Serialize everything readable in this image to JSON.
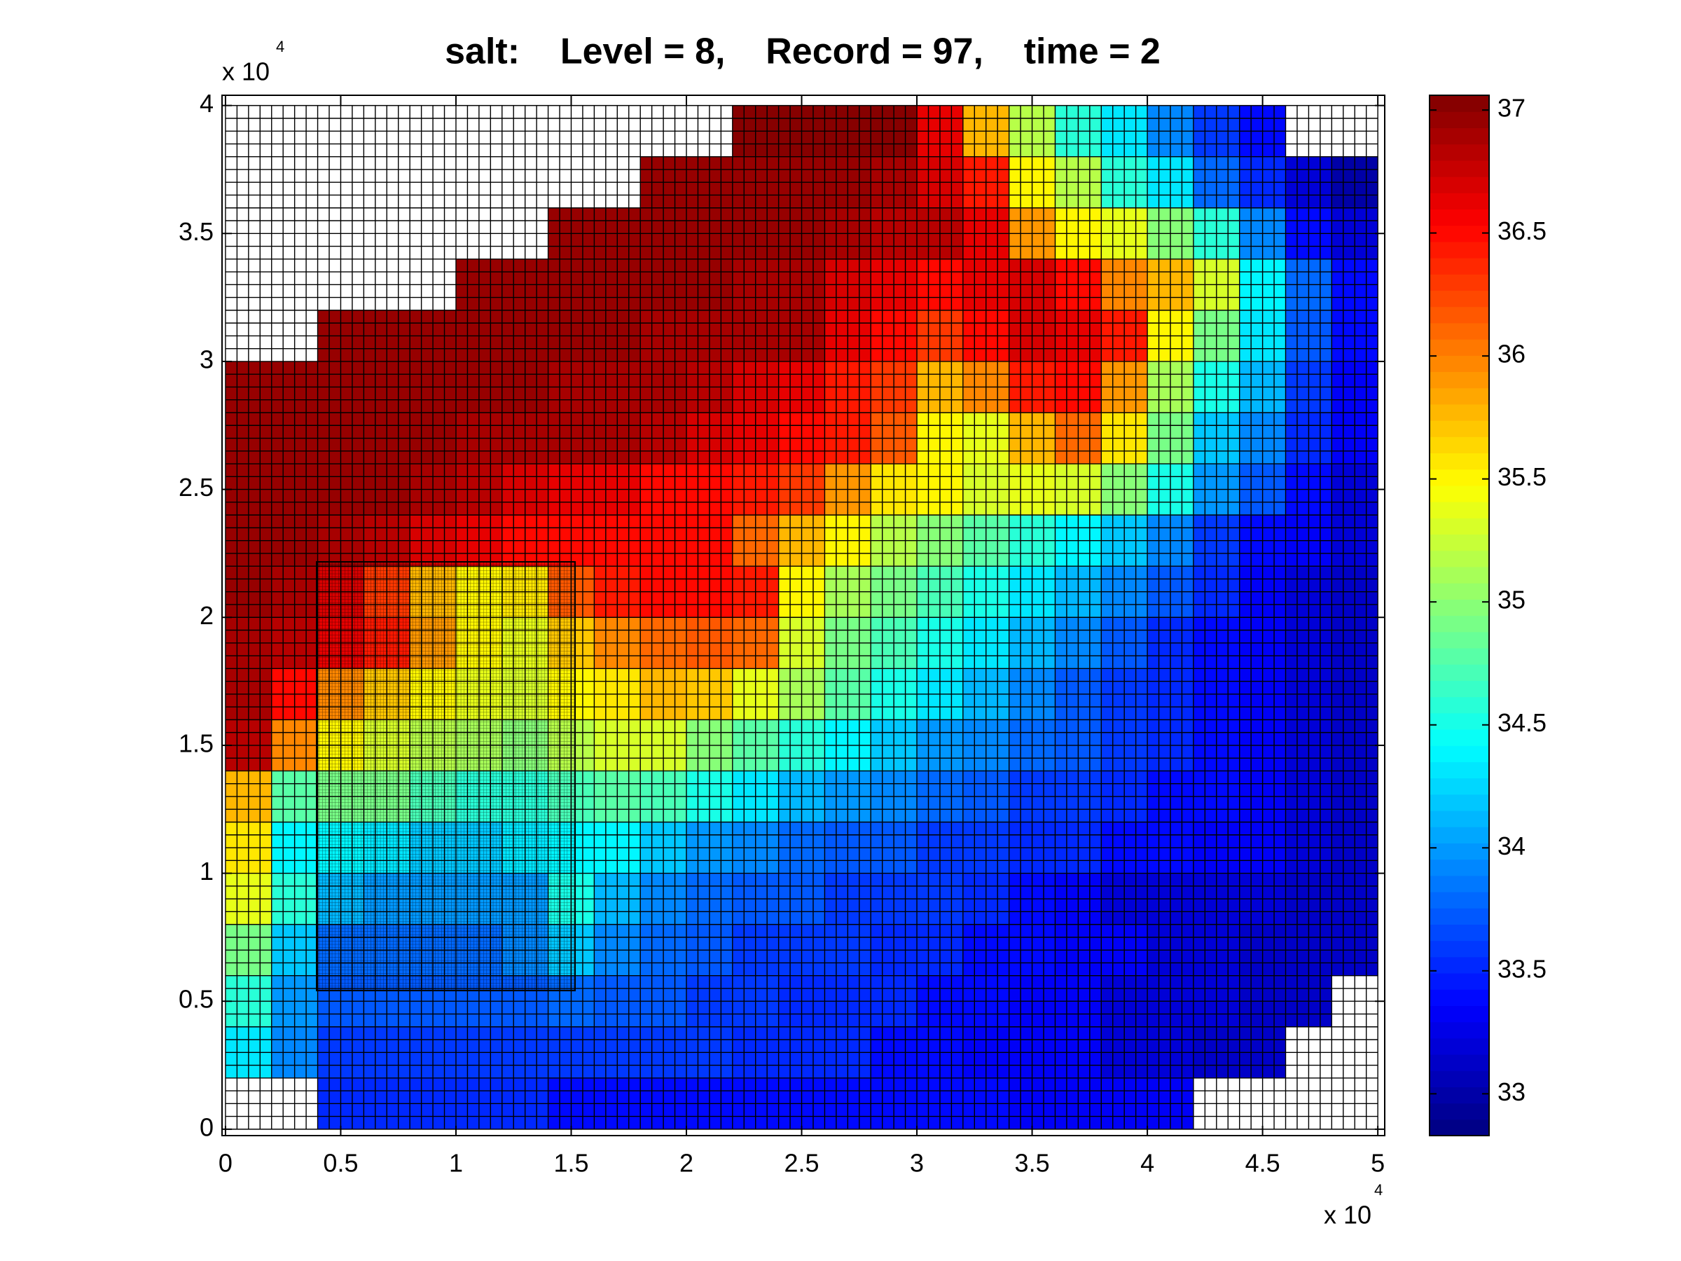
{
  "chart_data": {
    "type": "heatmap",
    "title": "salt:    Level = 8,    Record = 97,    time = 2",
    "x": [
      1000,
      3000,
      5000,
      7000,
      9000,
      11000,
      13000,
      15000,
      17000,
      19000,
      21000,
      23000,
      25000,
      27000,
      29000,
      31000,
      33000,
      35000,
      37000,
      39000,
      41000,
      43000,
      45000,
      47000,
      49000
    ],
    "y": [
      1000,
      3000,
      5000,
      7000,
      9000,
      11000,
      13000,
      15000,
      17000,
      19000,
      21000,
      23000,
      25000,
      27000,
      29000,
      31000,
      33000,
      35000,
      37000,
      39000
    ],
    "z": [
      [
        null,
        null,
        33.5,
        33.5,
        33.5,
        33.5,
        33.5,
        33.4,
        33.4,
        33.4,
        33.4,
        33.4,
        33.4,
        33.4,
        33.4,
        33.4,
        33.4,
        33.3,
        33.3,
        33.3,
        33.3,
        null,
        null,
        null,
        null
      ],
      [
        34.3,
        33.9,
        33.6,
        33.6,
        33.6,
        33.6,
        33.6,
        33.6,
        33.6,
        33.6,
        33.6,
        33.5,
        33.5,
        33.5,
        33.4,
        33.4,
        33.3,
        33.3,
        33.3,
        33.2,
        33.2,
        33.1,
        33.1,
        null,
        null
      ],
      [
        34.6,
        34.0,
        33.7,
        33.7,
        33.7,
        33.7,
        33.7,
        33.8,
        33.7,
        33.7,
        33.6,
        33.6,
        33.5,
        33.5,
        33.5,
        33.4,
        33.4,
        33.3,
        33.3,
        33.2,
        33.2,
        33.2,
        33.1,
        33.1,
        null
      ],
      [
        34.9,
        34.2,
        33.8,
        33.8,
        33.8,
        33.8,
        33.9,
        34.2,
        33.9,
        33.8,
        33.7,
        33.6,
        33.6,
        33.6,
        33.5,
        33.5,
        33.4,
        33.4,
        33.3,
        33.3,
        33.2,
        33.2,
        33.1,
        33.1,
        33.1
      ],
      [
        35.4,
        34.6,
        34.1,
        34.0,
        34.0,
        34.0,
        34.0,
        34.5,
        34.1,
        33.9,
        33.8,
        33.7,
        33.7,
        33.6,
        33.6,
        33.6,
        33.5,
        33.4,
        33.3,
        33.2,
        33.2,
        33.2,
        33.2,
        33.1,
        33.1
      ],
      [
        35.6,
        34.4,
        34.4,
        34.3,
        34.2,
        34.2,
        34.3,
        34.4,
        34.4,
        34.2,
        34.0,
        33.9,
        33.8,
        33.7,
        33.7,
        33.6,
        33.6,
        33.5,
        33.5,
        33.4,
        33.4,
        33.3,
        33.3,
        33.2,
        33.1
      ],
      [
        35.8,
        34.8,
        34.9,
        34.9,
        34.7,
        34.6,
        34.6,
        34.7,
        34.8,
        34.7,
        34.5,
        34.3,
        34.1,
        34.0,
        33.9,
        33.8,
        33.7,
        33.6,
        33.6,
        33.5,
        33.4,
        33.4,
        33.3,
        33.2,
        33.1
      ],
      [
        36.8,
        36.0,
        35.5,
        35.3,
        35.2,
        35.1,
        35.0,
        35.2,
        35.3,
        35.3,
        35.0,
        34.8,
        34.6,
        34.4,
        34.2,
        34.0,
        33.9,
        33.8,
        33.7,
        33.6,
        33.5,
        33.4,
        33.3,
        33.2,
        33.1
      ],
      [
        36.9,
        36.5,
        36.0,
        35.7,
        35.5,
        35.4,
        35.3,
        35.5,
        35.6,
        35.8,
        35.7,
        35.4,
        35.1,
        34.8,
        34.5,
        34.3,
        34.1,
        33.9,
        33.7,
        33.6,
        33.5,
        33.4,
        33.3,
        33.2,
        33.1
      ],
      [
        36.9,
        36.8,
        36.6,
        36.4,
        35.9,
        35.5,
        35.4,
        35.7,
        36.0,
        36.1,
        36.2,
        36.1,
        35.3,
        34.9,
        34.7,
        34.5,
        34.3,
        34.1,
        33.9,
        33.7,
        33.5,
        33.4,
        33.3,
        33.2,
        33.1
      ],
      [
        36.95,
        36.9,
        36.7,
        36.3,
        35.8,
        35.5,
        35.6,
        36.2,
        36.4,
        36.5,
        36.5,
        36.4,
        35.5,
        35.1,
        34.9,
        34.7,
        34.5,
        34.3,
        34.1,
        33.9,
        33.7,
        33.5,
        33.3,
        33.2,
        33.1
      ],
      [
        36.95,
        36.95,
        36.9,
        36.8,
        36.7,
        36.6,
        36.5,
        36.5,
        36.5,
        36.5,
        36.5,
        36.1,
        35.8,
        35.5,
        35.2,
        35.0,
        34.8,
        34.6,
        34.4,
        34.2,
        33.9,
        33.6,
        33.4,
        33.3,
        33.2
      ],
      [
        36.95,
        36.95,
        36.95,
        36.95,
        36.9,
        36.8,
        36.7,
        36.6,
        36.6,
        36.5,
        36.5,
        36.4,
        36.3,
        35.9,
        35.6,
        35.5,
        35.3,
        35.4,
        35.3,
        35.0,
        34.5,
        34.0,
        33.7,
        33.4,
        33.2
      ],
      [
        36.95,
        36.95,
        36.95,
        36.95,
        36.95,
        36.9,
        36.9,
        36.9,
        36.9,
        36.8,
        36.7,
        36.6,
        36.5,
        36.4,
        36.2,
        35.5,
        35.4,
        35.8,
        36.1,
        35.6,
        34.9,
        34.2,
        33.9,
        33.5,
        33.3
      ],
      [
        36.95,
        36.95,
        36.95,
        36.95,
        36.95,
        36.95,
        36.95,
        36.9,
        36.9,
        36.9,
        36.8,
        36.7,
        36.6,
        36.4,
        36.3,
        35.8,
        36.0,
        36.4,
        36.5,
        35.9,
        35.1,
        34.5,
        34.1,
        33.6,
        33.3
      ],
      [
        null,
        null,
        36.95,
        36.95,
        36.95,
        36.95,
        36.95,
        36.95,
        36.95,
        36.9,
        36.9,
        36.9,
        36.9,
        36.6,
        36.5,
        36.3,
        36.5,
        36.7,
        36.6,
        36.4,
        35.5,
        34.9,
        34.3,
        33.7,
        33.4
      ],
      [
        null,
        null,
        null,
        null,
        null,
        36.95,
        36.95,
        36.95,
        36.95,
        36.95,
        36.95,
        36.9,
        36.9,
        36.7,
        36.6,
        36.5,
        36.6,
        36.7,
        36.5,
        36.0,
        35.8,
        35.3,
        34.4,
        33.8,
        33.4
      ],
      [
        null,
        null,
        null,
        null,
        null,
        null,
        null,
        36.95,
        36.95,
        36.95,
        36.95,
        36.95,
        36.95,
        36.9,
        36.8,
        36.8,
        36.6,
        35.9,
        35.5,
        35.4,
        35.0,
        34.6,
        33.9,
        33.4,
        33.2
      ],
      [
        null,
        null,
        null,
        null,
        null,
        null,
        null,
        null,
        null,
        36.95,
        36.95,
        36.95,
        36.95,
        36.95,
        36.9,
        36.7,
        36.4,
        35.5,
        35.2,
        34.6,
        34.3,
        33.8,
        33.5,
        33.2,
        33.0
      ],
      [
        null,
        null,
        null,
        null,
        null,
        null,
        null,
        null,
        null,
        null,
        null,
        37.0,
        37.0,
        37.0,
        37.0,
        36.6,
        35.8,
        35.2,
        34.6,
        34.3,
        33.9,
        33.6,
        33.4,
        null,
        null
      ]
    ],
    "xlim": [
      -150,
      50300
    ],
    "ylim": [
      -250,
      40400
    ],
    "xticks": [
      0,
      {
        "value": 5000,
        "label": "0.5"
      },
      {
        "value": 10000,
        "label": "1"
      },
      {
        "value": 15000,
        "label": "1.5"
      },
      {
        "value": 20000,
        "label": "2"
      },
      {
        "value": 25000,
        "label": "2.5"
      },
      {
        "value": 30000,
        "label": "3"
      },
      {
        "value": 35000,
        "label": "3.5"
      },
      {
        "value": 40000,
        "label": "4"
      },
      {
        "value": 45000,
        "label": "4.5"
      },
      {
        "value": 50000,
        "label": "5"
      }
    ],
    "yticks": [
      0,
      {
        "value": 5000,
        "label": "0.5"
      },
      {
        "value": 10000,
        "label": "1"
      },
      {
        "value": 15000,
        "label": "1.5"
      },
      {
        "value": 20000,
        "label": "2"
      },
      {
        "value": 25000,
        "label": "2.5"
      },
      {
        "value": 30000,
        "label": "3"
      },
      {
        "value": 35000,
        "label": "3.5"
      },
      {
        "value": 40000,
        "label": "4"
      }
    ],
    "x_multiplier": {
      "base": "x 10",
      "exponent": "4"
    },
    "y_multiplier": {
      "base": "x 10",
      "exponent": "4"
    },
    "colormap": "jet",
    "shading": "faceted",
    "colorbar": {
      "clim": [
        32.83,
        37.06
      ],
      "ticks": [
        33,
        33.5,
        34,
        34.5,
        35,
        35.5,
        36,
        36.5,
        37
      ]
    }
  }
}
